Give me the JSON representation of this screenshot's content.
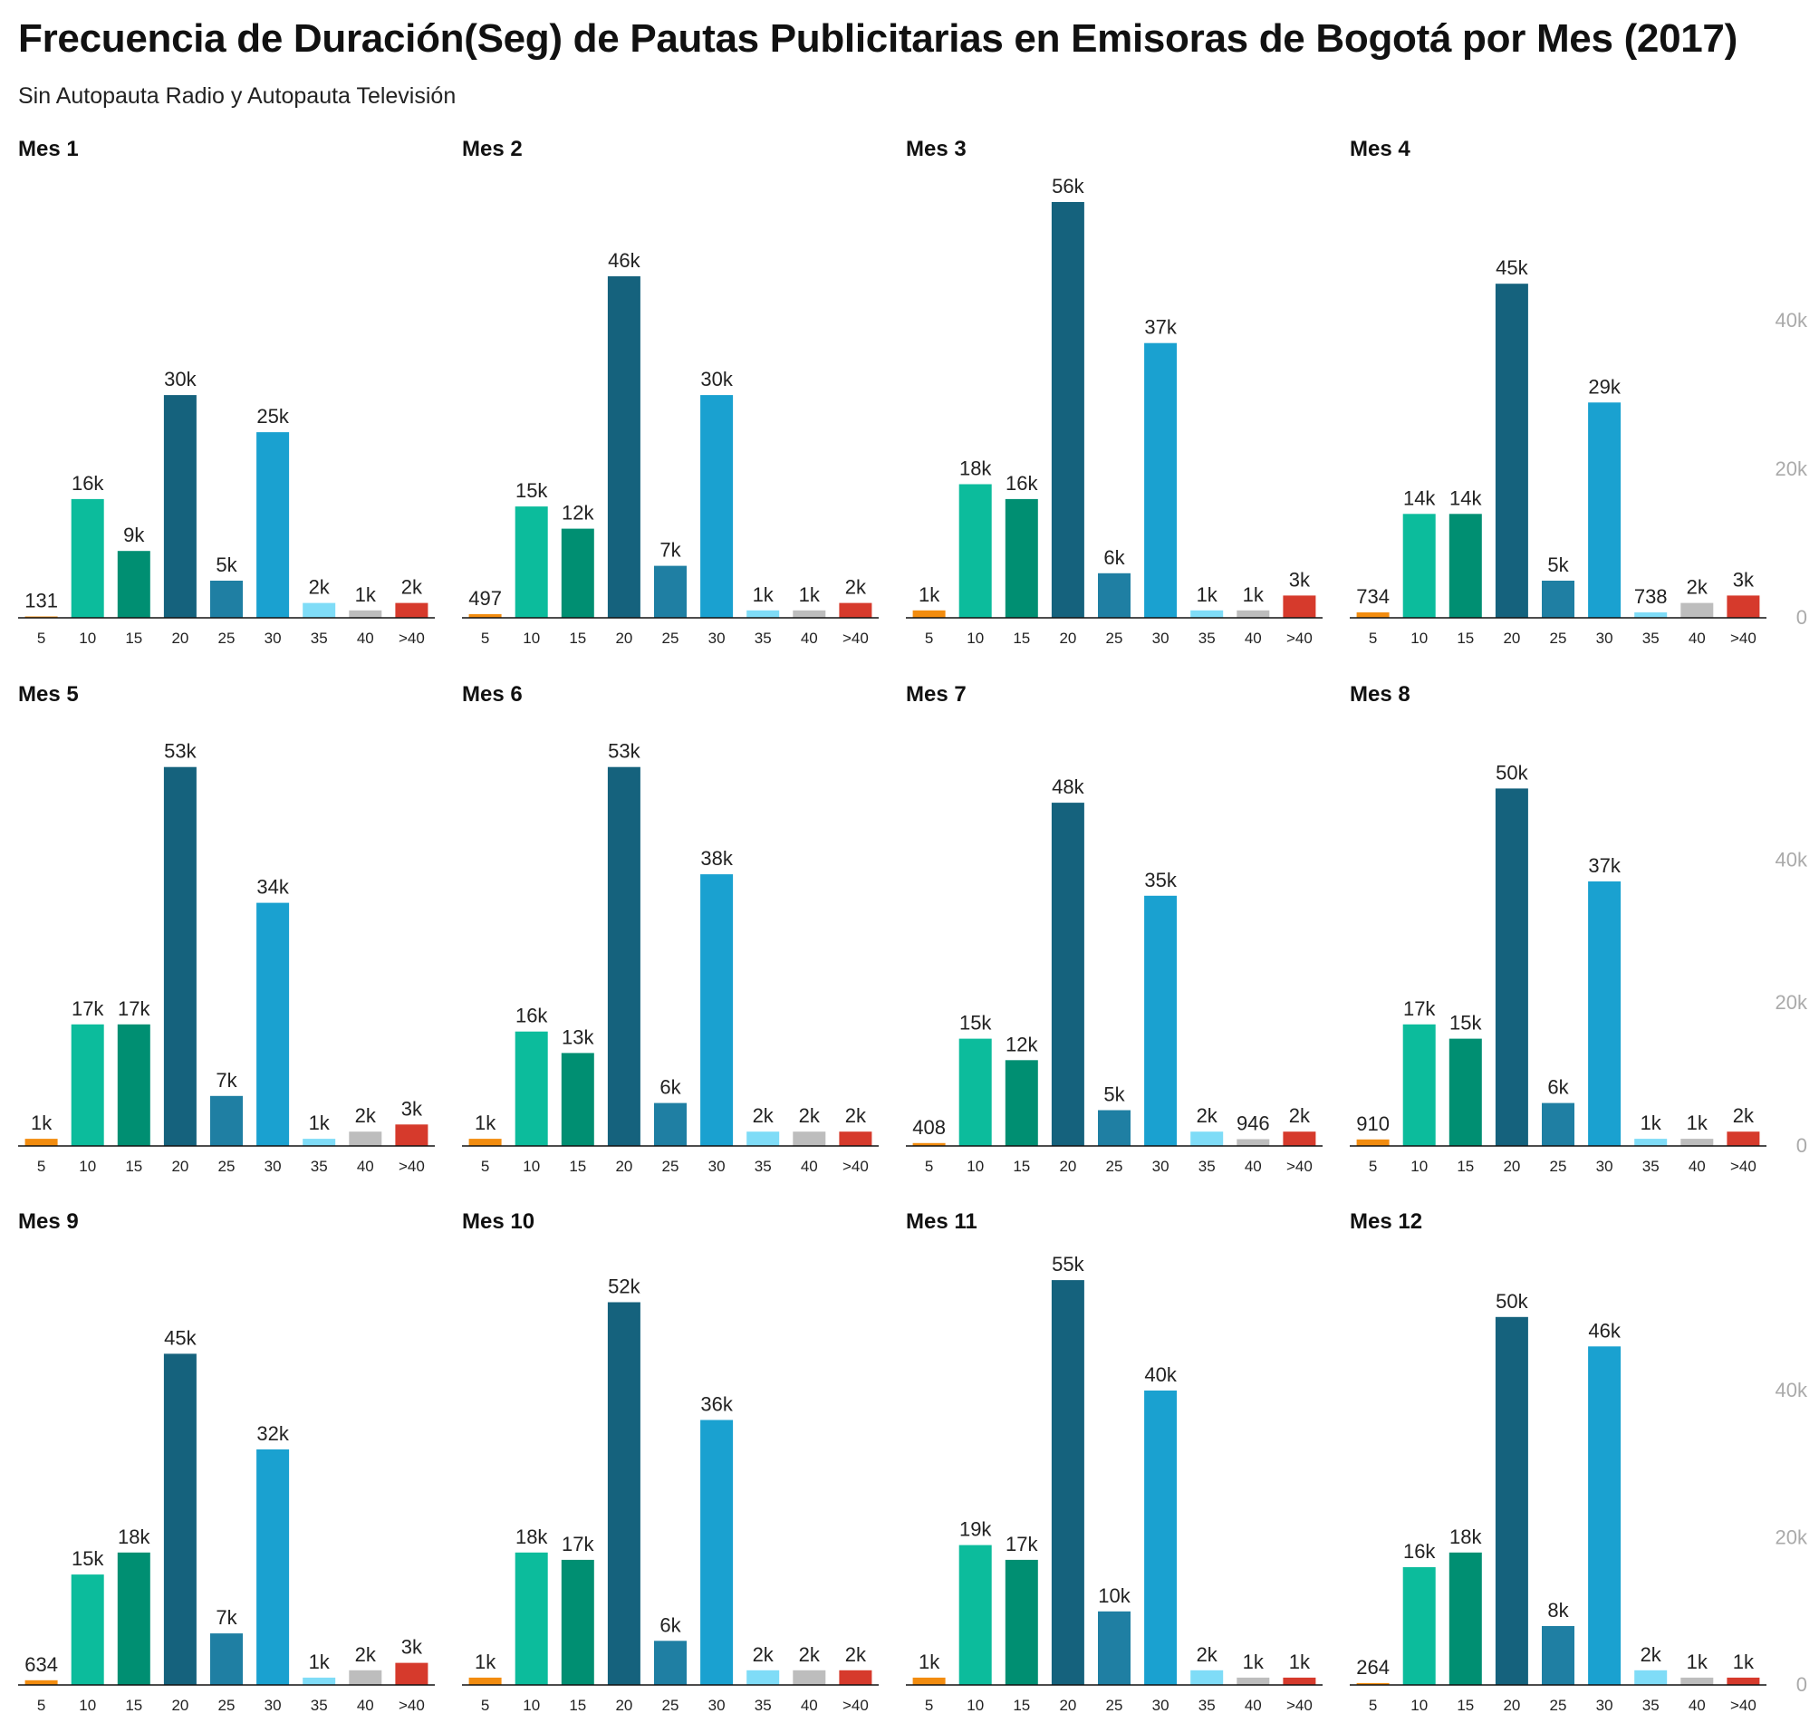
{
  "title": "Frecuencia de Duración(Seg) de Pautas Publicitarias en Emisoras de Bogotá por Mes (2017)",
  "subtitle": "Sin Autopauta Radio y Autopauta Televisión",
  "colors": [
    "#f28c0f",
    "#0cbc9c",
    "#008f72",
    "#15627d",
    "#1f7fa3",
    "#1aa1d0",
    "#7fdcf7",
    "#bdbdbd",
    "#d63a2c"
  ],
  "chart_data": {
    "type": "bar",
    "categories": [
      "5",
      "10",
      "15",
      "20",
      "25",
      "30",
      "35",
      "40",
      ">40"
    ],
    "ylim": [
      0,
      56000
    ],
    "y_ticks": [
      0,
      20000,
      40000
    ],
    "y_tick_labels": [
      "0",
      "20k",
      "40k"
    ],
    "panels": [
      {
        "title": "Mes 1",
        "values": [
          131,
          16000,
          9000,
          30000,
          5000,
          25000,
          2000,
          1000,
          2000
        ],
        "labels": [
          "131",
          "16k",
          "9k",
          "30k",
          "5k",
          "25k",
          "2k",
          "1k",
          "2k"
        ]
      },
      {
        "title": "Mes 2",
        "values": [
          497,
          15000,
          12000,
          46000,
          7000,
          30000,
          1000,
          1000,
          2000
        ],
        "labels": [
          "497",
          "15k",
          "12k",
          "46k",
          "7k",
          "30k",
          "1k",
          "1k",
          "2k"
        ]
      },
      {
        "title": "Mes 3",
        "values": [
          1000,
          18000,
          16000,
          56000,
          6000,
          37000,
          1000,
          1000,
          3000
        ],
        "labels": [
          "1k",
          "18k",
          "16k",
          "56k",
          "6k",
          "37k",
          "1k",
          "1k",
          "3k"
        ]
      },
      {
        "title": "Mes 4",
        "values": [
          734,
          14000,
          14000,
          45000,
          5000,
          29000,
          738,
          2000,
          3000
        ],
        "labels": [
          "734",
          "14k",
          "14k",
          "45k",
          "5k",
          "29k",
          "738",
          "2k",
          "3k"
        ]
      },
      {
        "title": "Mes 5",
        "values": [
          1000,
          17000,
          17000,
          53000,
          7000,
          34000,
          1000,
          2000,
          3000
        ],
        "labels": [
          "1k",
          "17k",
          "17k",
          "53k",
          "7k",
          "34k",
          "1k",
          "2k",
          "3k"
        ]
      },
      {
        "title": "Mes 6",
        "values": [
          1000,
          16000,
          13000,
          53000,
          6000,
          38000,
          2000,
          2000,
          2000
        ],
        "labels": [
          "1k",
          "16k",
          "13k",
          "53k",
          "6k",
          "38k",
          "2k",
          "2k",
          "2k"
        ]
      },
      {
        "title": "Mes 7",
        "values": [
          408,
          15000,
          12000,
          48000,
          5000,
          35000,
          2000,
          946,
          2000
        ],
        "labels": [
          "408",
          "15k",
          "12k",
          "48k",
          "5k",
          "35k",
          "2k",
          "946",
          "2k"
        ]
      },
      {
        "title": "Mes 8",
        "values": [
          910,
          17000,
          15000,
          50000,
          6000,
          37000,
          1000,
          1000,
          2000
        ],
        "labels": [
          "910",
          "17k",
          "15k",
          "50k",
          "6k",
          "37k",
          "1k",
          "1k",
          "2k"
        ]
      },
      {
        "title": "Mes 9",
        "values": [
          634,
          15000,
          18000,
          45000,
          7000,
          32000,
          1000,
          2000,
          3000
        ],
        "labels": [
          "634",
          "15k",
          "18k",
          "45k",
          "7k",
          "32k",
          "1k",
          "2k",
          "3k"
        ]
      },
      {
        "title": "Mes 10",
        "values": [
          1000,
          18000,
          17000,
          52000,
          6000,
          36000,
          2000,
          2000,
          2000
        ],
        "labels": [
          "1k",
          "18k",
          "17k",
          "52k",
          "6k",
          "36k",
          "2k",
          "2k",
          "2k"
        ]
      },
      {
        "title": "Mes 11",
        "values": [
          1000,
          19000,
          17000,
          55000,
          10000,
          40000,
          2000,
          1000,
          1000
        ],
        "labels": [
          "1k",
          "19k",
          "17k",
          "55k",
          "10k",
          "40k",
          "2k",
          "1k",
          "1k"
        ]
      },
      {
        "title": "Mes 12",
        "values": [
          264,
          16000,
          18000,
          50000,
          8000,
          46000,
          2000,
          1000,
          1000
        ],
        "labels": [
          "264",
          "16k",
          "18k",
          "50k",
          "8k",
          "46k",
          "2k",
          "1k",
          "1k"
        ]
      }
    ]
  }
}
